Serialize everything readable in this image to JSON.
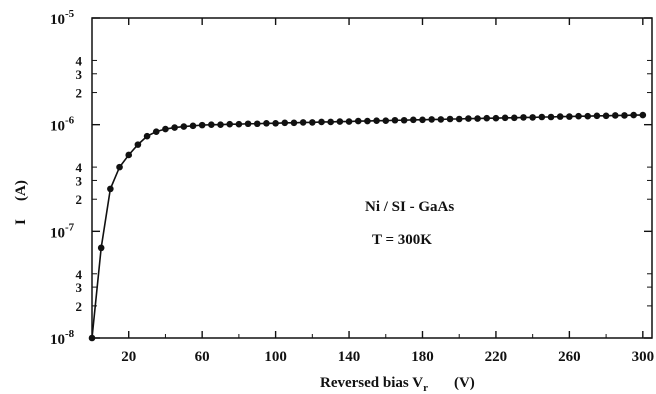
{
  "chart_data": {
    "type": "scatter",
    "title": "",
    "xlabel": "Reversed bias V",
    "xlabel_sub": "r",
    "xlabel_unit": "(V)",
    "ylabel": "I",
    "ylabel_unit": "(A)",
    "xlim": [
      0,
      305
    ],
    "ylim": [
      1e-08,
      1e-05
    ],
    "yscale": "log",
    "grid": false,
    "x_ticks": [
      20,
      60,
      100,
      140,
      180,
      220,
      260,
      300
    ],
    "x_tick_labels": [
      "20",
      "60",
      "100",
      "140",
      "180",
      "220",
      "260",
      "300"
    ],
    "y_major_ticks": [
      {
        "value": 1e-08,
        "base": "10",
        "exp": "-8"
      },
      {
        "value": 1e-07,
        "base": "10",
        "exp": "-7"
      },
      {
        "value": 1e-06,
        "base": "10",
        "exp": "-6"
      },
      {
        "value": 1e-05,
        "base": "10",
        "exp": "-5"
      }
    ],
    "y_minor_ticks": [
      {
        "value": 2e-08,
        "label": "2"
      },
      {
        "value": 3e-08,
        "label": "3"
      },
      {
        "value": 4e-08,
        "label": "4"
      },
      {
        "value": 2e-07,
        "label": "2"
      },
      {
        "value": 3e-07,
        "label": "3"
      },
      {
        "value": 4e-07,
        "label": "4"
      },
      {
        "value": 2e-06,
        "label": "2"
      },
      {
        "value": 3e-06,
        "label": "3"
      },
      {
        "value": 4e-06,
        "label": "4"
      }
    ],
    "annotations": [
      "Ni / SI - GaAs",
      "T = 300K"
    ],
    "series": [
      {
        "x": [
          0,
          5,
          10,
          15,
          20,
          25,
          30,
          35,
          40,
          45,
          50,
          55,
          60,
          65,
          70,
          75,
          80,
          85,
          90,
          95,
          100,
          105,
          110,
          115,
          120,
          125,
          130,
          135,
          140,
          145,
          150,
          155,
          160,
          165,
          170,
          175,
          180,
          185,
          190,
          195,
          200,
          205,
          210,
          215,
          220,
          225,
          230,
          235,
          240,
          245,
          250,
          255,
          260,
          265,
          270,
          275,
          280,
          285,
          290,
          295,
          300
        ],
        "y": [
          1e-08,
          7e-08,
          2.5e-07,
          4e-07,
          5.2e-07,
          6.5e-07,
          7.8e-07,
          8.6e-07,
          9.1e-07,
          9.4e-07,
          9.6e-07,
          9.75e-07,
          9.9e-07,
          1e-06,
          1e-06,
          1.01e-06,
          1.01e-06,
          1.02e-06,
          1.02e-06,
          1.03e-06,
          1.03e-06,
          1.04e-06,
          1.04e-06,
          1.05e-06,
          1.05e-06,
          1.06e-06,
          1.06e-06,
          1.07e-06,
          1.07e-06,
          1.08e-06,
          1.08e-06,
          1.09e-06,
          1.09e-06,
          1.1e-06,
          1.1e-06,
          1.11e-06,
          1.11e-06,
          1.12e-06,
          1.12e-06,
          1.13e-06,
          1.13e-06,
          1.14e-06,
          1.14e-06,
          1.15e-06,
          1.15e-06,
          1.16e-06,
          1.16e-06,
          1.17e-06,
          1.17e-06,
          1.18e-06,
          1.18e-06,
          1.19e-06,
          1.19e-06,
          1.2e-06,
          1.2e-06,
          1.21e-06,
          1.21e-06,
          1.22e-06,
          1.22e-06,
          1.23e-06,
          1.23e-06
        ],
        "marker": "filled-circle",
        "color": "#111111",
        "line": true
      }
    ]
  }
}
